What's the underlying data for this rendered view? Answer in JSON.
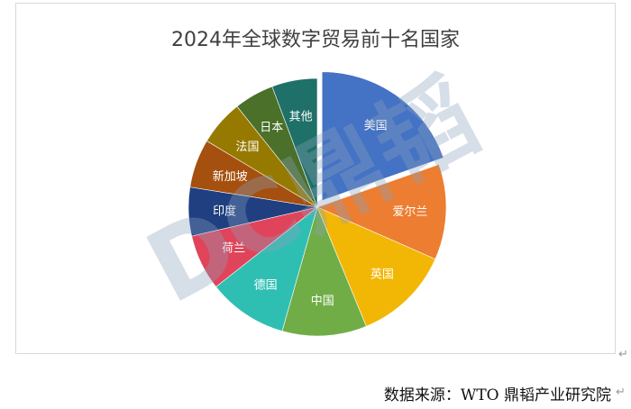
{
  "chart_data": {
    "type": "pie",
    "title": "2024年全球数字贸易前十名国家",
    "categories": [
      "美国",
      "爱尔兰",
      "英国",
      "中国",
      "德国",
      "荷兰",
      "印度",
      "新加坡",
      "法国",
      "日本",
      "其他"
    ],
    "values": [
      19.6,
      12.0,
      12.2,
      10.6,
      10.0,
      7.0,
      6.1,
      6.1,
      5.7,
      5.0,
      5.7
    ],
    "colors": [
      "#4472c4",
      "#ed7d31",
      "#f2b705",
      "#70ad47",
      "#2ebfb2",
      "#e0445a",
      "#1f3f80",
      "#a5500f",
      "#967a00",
      "#4a7029",
      "#1e7068"
    ],
    "exploded": [
      "美国"
    ],
    "start_angle": "12 o'clock, clockwise",
    "legend": "none"
  },
  "footer": {
    "source": "数据来源：WTO  鼎韬产业研究院"
  },
  "watermark": "DC鼎韬"
}
